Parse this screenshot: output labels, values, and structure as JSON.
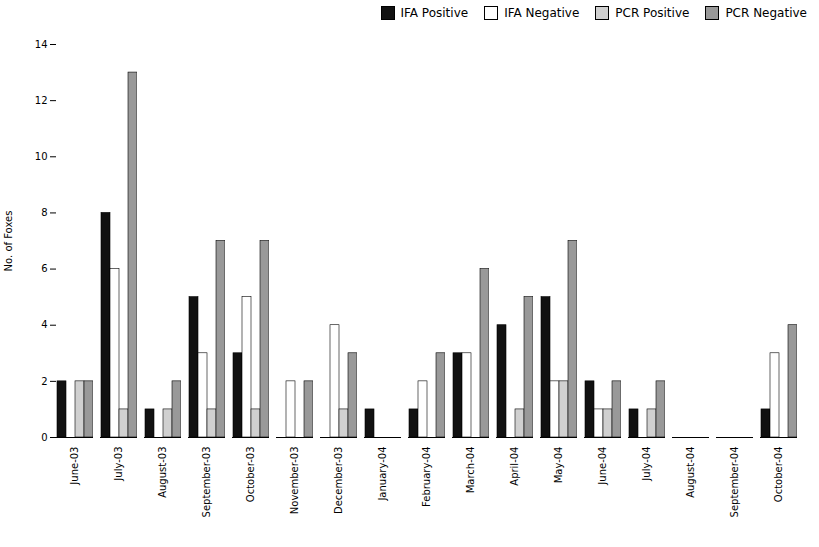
{
  "chart_data": {
    "type": "bar",
    "categories": [
      "June-03",
      "July-03",
      "August-03",
      "September-03",
      "October-03",
      "November-03",
      "December-03",
      "January-04",
      "February-04",
      "March-04",
      "April-04",
      "May-04",
      "June-04",
      "July-04",
      "August-04",
      "September-04",
      "October-04"
    ],
    "series": [
      {
        "name": "IFA Positive",
        "color": "#111111",
        "values": [
          2,
          8,
          1,
          5,
          3,
          0,
          0,
          1,
          1,
          3,
          4,
          5,
          2,
          1,
          0,
          0,
          1
        ]
      },
      {
        "name": "IFA Negative",
        "color": "#ffffff",
        "values": [
          0,
          6,
          0,
          3,
          5,
          2,
          4,
          0,
          2,
          3,
          0,
          2,
          1,
          0,
          0,
          0,
          3
        ]
      },
      {
        "name": "PCR Positive",
        "color": "#d0d0d0",
        "values": [
          2,
          1,
          1,
          1,
          1,
          0,
          1,
          0,
          0,
          0,
          1,
          2,
          1,
          1,
          0,
          0,
          0
        ]
      },
      {
        "name": "PCR Negative",
        "color": "#999999",
        "values": [
          2,
          13,
          2,
          7,
          7,
          2,
          3,
          0,
          3,
          6,
          5,
          7,
          2,
          2,
          0,
          0,
          4
        ]
      }
    ],
    "ylabel": "No. of Foxes",
    "ylim": [
      0,
      14
    ],
    "yticks": [
      0,
      2,
      4,
      6,
      8,
      10,
      12,
      14
    ],
    "grid": false,
    "legend": "upper right"
  }
}
